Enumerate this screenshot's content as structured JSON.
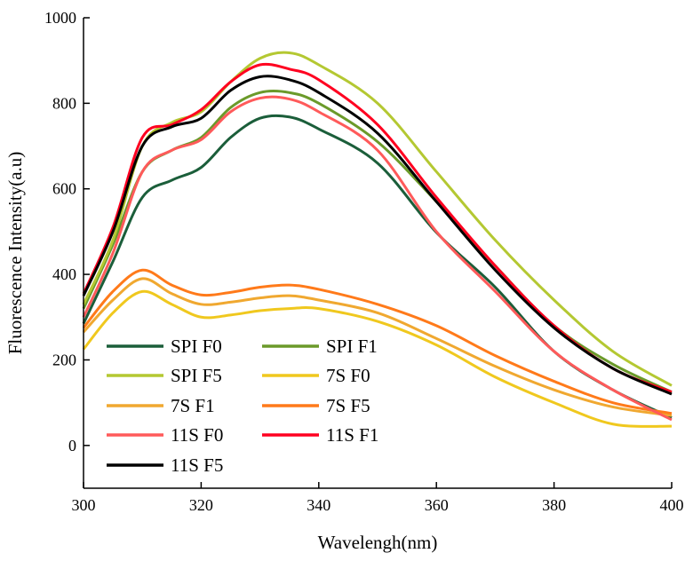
{
  "chart_data": {
    "type": "line",
    "title": "",
    "xlabel": "Wavelengh(nm)",
    "ylabel": "Fluorescence Intensity(a.u)",
    "xlim": [
      300,
      400
    ],
    "ylim": [
      -100,
      1000
    ],
    "xticks": [
      300,
      320,
      340,
      360,
      380,
      400
    ],
    "yticks": [
      0,
      200,
      400,
      600,
      800,
      1000
    ],
    "grid": false,
    "legend_position": "bottom-left",
    "x": [
      300,
      305,
      310,
      315,
      320,
      325,
      330,
      335,
      340,
      350,
      360,
      370,
      380,
      390,
      400
    ],
    "series": [
      {
        "name": "SPI F0",
        "color": "#1b5e3a",
        "values": [
          285,
          430,
          580,
          620,
          650,
          720,
          765,
          768,
          740,
          660,
          498,
          370,
          220,
          130,
          65
        ]
      },
      {
        "name": "SPI F1",
        "color": "#6b9a2a",
        "values": [
          320,
          470,
          640,
          690,
          720,
          790,
          825,
          825,
          800,
          710,
          570,
          420,
          280,
          190,
          125
        ]
      },
      {
        "name": "SPI F5",
        "color": "#b4c832",
        "values": [
          330,
          480,
          700,
          755,
          780,
          850,
          905,
          918,
          890,
          800,
          640,
          480,
          340,
          220,
          140
        ]
      },
      {
        "name": "7S F0",
        "color": "#f0c81e",
        "values": [
          225,
          310,
          360,
          330,
          300,
          305,
          315,
          320,
          320,
          290,
          235,
          160,
          100,
          50,
          45
        ]
      },
      {
        "name": "7S F1",
        "color": "#f0a830",
        "values": [
          265,
          340,
          390,
          355,
          330,
          335,
          345,
          350,
          340,
          310,
          250,
          185,
          130,
          90,
          70
        ]
      },
      {
        "name": "7S F5",
        "color": "#ff7a1a",
        "values": [
          275,
          360,
          410,
          375,
          352,
          358,
          370,
          375,
          365,
          330,
          280,
          210,
          150,
          100,
          75
        ]
      },
      {
        "name": "11S F0",
        "color": "#ff5a5a",
        "values": [
          300,
          450,
          640,
          690,
          715,
          780,
          812,
          810,
          780,
          690,
          500,
          360,
          220,
          130,
          60
        ]
      },
      {
        "name": "11S F1",
        "color": "#ff0020",
        "values": [
          355,
          510,
          720,
          750,
          785,
          850,
          890,
          880,
          855,
          750,
          580,
          420,
          280,
          180,
          125
        ]
      },
      {
        "name": "11S F5",
        "color": "#000000",
        "values": [
          350,
          500,
          700,
          745,
          765,
          830,
          862,
          855,
          825,
          730,
          570,
          410,
          275,
          180,
          120
        ]
      }
    ]
  }
}
